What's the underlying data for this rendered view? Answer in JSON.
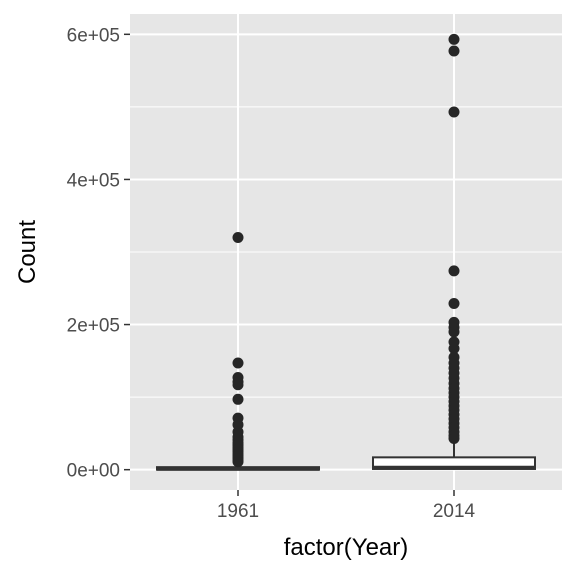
{
  "chart_data": {
    "type": "boxplot",
    "xlabel": "factor(Year)",
    "ylabel": "Count",
    "ylim": [
      -28000,
      628000
    ],
    "y_ticks": [
      {
        "value": 0,
        "label": "0e+00"
      },
      {
        "value": 200000,
        "label": "2e+05"
      },
      {
        "value": 400000,
        "label": "4e+05"
      },
      {
        "value": 600000,
        "label": "6e+05"
      }
    ],
    "y_minor_ticks": [
      100000,
      300000,
      500000
    ],
    "grid": true,
    "colors": {
      "panel": "#e6e6e6",
      "grid": "#ffffff",
      "box_fill": "#ffffff",
      "stroke": "#333333",
      "point": "#262626"
    },
    "categories": [
      "1961",
      "2014"
    ],
    "boxes": [
      {
        "category": "1961",
        "q1": 0,
        "median": 1000,
        "q3": 3500,
        "whisker_low": 0,
        "whisker_high": 9000,
        "outliers": [
          320000,
          147000,
          127000,
          121000,
          117000,
          97000,
          71000,
          62000,
          52000,
          45000,
          41000,
          37000,
          34000,
          31000,
          28000,
          25000,
          22000,
          19000,
          16000,
          13000,
          11000
        ]
      },
      {
        "category": "2014",
        "q1": 1000,
        "median": 3000,
        "q3": 17000,
        "whisker_low": 0,
        "whisker_high": 41000,
        "outliers": [
          593000,
          577000,
          493000,
          274000,
          229000,
          203000,
          196000,
          190000,
          176000,
          167000,
          155000,
          147000,
          140000,
          133000,
          126000,
          119000,
          112000,
          106000,
          100000,
          94000,
          88000,
          82000,
          76000,
          70000,
          64000,
          58000,
          52000,
          47000,
          43000
        ]
      }
    ]
  }
}
